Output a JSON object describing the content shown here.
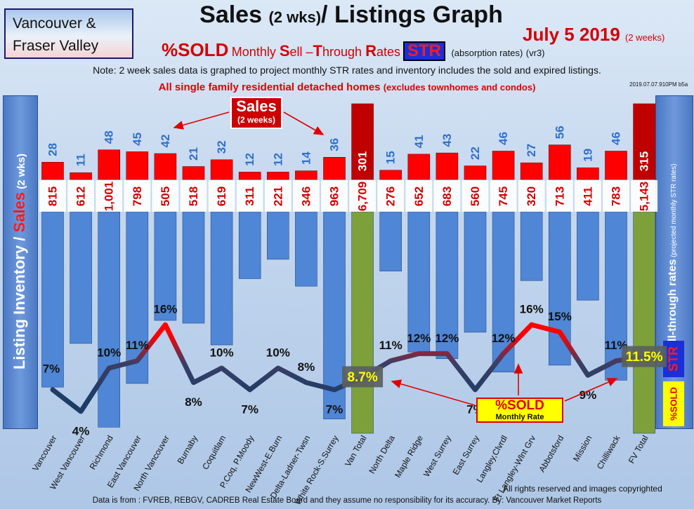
{
  "header": {
    "region_line1": "Vancouver &",
    "region_line2": "Fraser Valley",
    "title_a": "Sales ",
    "title_b": "(2 wks)",
    "title_c": "/ Listings Graph",
    "date_main": "July 5 2019",
    "date_sub": "(2 weeks)",
    "str_pct": "%SOLD",
    "str_m": "Monthly ",
    "str_s": "S",
    "str_ell": "ell –",
    "str_t": "T",
    "str_hrough": "hrough ",
    "str_r": "R",
    "str_ates": "ates",
    "str_box": "STR",
    "str_abs": "(absorption rates)",
    "str_ver": "(vr3)",
    "note": "Note: 2 week sales data is graphed to project monthly STR rates and inventory includes the sold and expired listings.",
    "homes_main": "All single family residential detached homes",
    "homes_sub": "(excludes townhomes and condos)",
    "stamp": "2019.07.07.910PM b5a"
  },
  "side": {
    "left_a": "Listing Inventory / ",
    "left_b": "Sales",
    "left_c": " (2 wks)",
    "right_a": "Sell-through rates",
    "right_b": " (projected monthly STR rates)",
    "right_str": "STR",
    "right_pct": "%SOLD"
  },
  "callouts": {
    "sales_t1": "Sales",
    "sales_t2": "(2 weeks)",
    "sold_t1": "%SOLD",
    "sold_t2": "Monthly Rate"
  },
  "footer": {
    "rights": "All rights reserved and  images copyrighted",
    "source": "Data is from : FVREB, REBGV, CADREB Real Estate Board and they assume no responsibility for its accuracy. By: Vancouver Market Reports"
  },
  "colors": {
    "inventory_bar": "#4f86d6",
    "total_bar": "#7ea03a",
    "sales_bar": "#ff0000",
    "total_sales": "#c00000",
    "sales_label": "#2f6fcc",
    "inventory_label": "#d40000",
    "line_low": "#1c3c66",
    "line_high": "#ff0000"
  },
  "chart_data": {
    "type": "bar",
    "categories": [
      "Vancouver",
      "West Vancouver",
      "Richmond",
      "East Vancouver",
      "North Vancouver",
      "Burnaby",
      "Coquitlam",
      "P.Coq, P.Moody",
      "NewWest-E.Burn",
      "Delta-Ladner-Twsn",
      "White Rock-S.Surrey",
      "Van Total",
      "North Delta",
      "Maple Ridge",
      "West Surrey",
      "East Surrey",
      "Langley,Clvrdl",
      "Ft Langley-Wlnt Grv",
      "Abbotsford",
      "Mission",
      "Chilliwack",
      "FV Total"
    ],
    "series": [
      {
        "name": "Listing Inventory",
        "values": [
          815,
          612,
          1001,
          798,
          505,
          518,
          619,
          311,
          221,
          346,
          963,
          6709,
          276,
          652,
          683,
          560,
          745,
          320,
          713,
          411,
          783,
          5143
        ]
      },
      {
        "name": "Sales",
        "values": [
          28,
          11,
          48,
          45,
          42,
          21,
          32,
          12,
          12,
          14,
          36,
          301,
          15,
          41,
          43,
          22,
          46,
          27,
          56,
          19,
          46,
          315
        ]
      },
      {
        "name": "%SOLD",
        "values": [
          7,
          4,
          10,
          11,
          16,
          8,
          10,
          7,
          10,
          8,
          7,
          8.7,
          11,
          12,
          12,
          7,
          12,
          16,
          15,
          9,
          11,
          11.5
        ]
      }
    ],
    "inventory_labels": [
      "815",
      "612",
      "1,001",
      "798",
      "505",
      "518",
      "619",
      "311",
      "221",
      "346",
      "963",
      "6,709",
      "276",
      "652",
      "683",
      "560",
      "745",
      "320",
      "713",
      "411",
      "783",
      "5,143"
    ],
    "sold_labels": [
      "7%",
      "4%",
      "10%",
      "11%",
      "16%",
      "8%",
      "10%",
      "7%",
      "10%",
      "8%",
      "7%",
      "8.7%",
      "11%",
      "12%",
      "12%",
      "7%",
      "12%",
      "16%",
      "15%",
      "9%",
      "11%",
      "11.5%"
    ],
    "totals": [
      11,
      21
    ],
    "ylabel": "Listing Inventory / Sales (2 wks)",
    "y2label": "Sell-through rates (projected monthly STR rates)"
  }
}
